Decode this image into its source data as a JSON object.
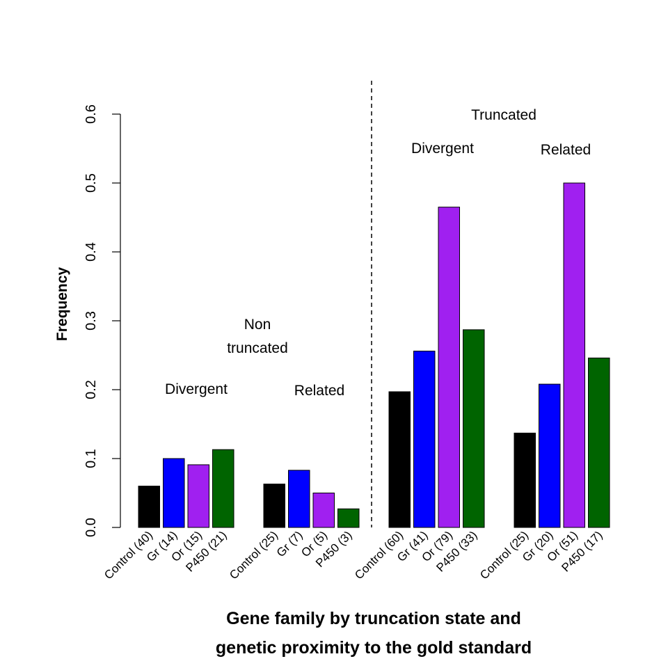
{
  "chart_data": {
    "type": "bar",
    "title": "",
    "xlabel_lines": [
      "Gene family by truncation state and",
      "genetic proximity to the gold standard"
    ],
    "ylabel": "Frequency",
    "ylim": [
      0,
      0.6
    ],
    "yticks": [
      "0.0",
      "0.1",
      "0.2",
      "0.3",
      "0.4",
      "0.5",
      "0.6"
    ],
    "grid": false,
    "legend": "none",
    "colors": {
      "Control": "#000000",
      "Gr": "#0000ff",
      "Or": "#a020f0",
      "P450": "#006400"
    },
    "groups": [
      {
        "truncation": "Non truncated",
        "proximity": "Divergent",
        "bars": [
          {
            "family": "Control",
            "label": "Control (40)",
            "value": 0.06
          },
          {
            "family": "Gr",
            "label": "Gr (14)",
            "value": 0.1
          },
          {
            "family": "Or",
            "label": "Or (15)",
            "value": 0.091
          },
          {
            "family": "P450",
            "label": "P450 (21)",
            "value": 0.113
          }
        ]
      },
      {
        "truncation": "Non truncated",
        "proximity": "Related",
        "bars": [
          {
            "family": "Control",
            "label": "Control (25)",
            "value": 0.063
          },
          {
            "family": "Gr",
            "label": "Gr (7)",
            "value": 0.083
          },
          {
            "family": "Or",
            "label": "Or (5)",
            "value": 0.05
          },
          {
            "family": "P450",
            "label": "P450 (3)",
            "value": 0.027
          }
        ]
      },
      {
        "truncation": "Truncated",
        "proximity": "Divergent",
        "bars": [
          {
            "family": "Control",
            "label": "Control (60)",
            "value": 0.197
          },
          {
            "family": "Gr",
            "label": "Gr (41)",
            "value": 0.256
          },
          {
            "family": "Or",
            "label": "Or (79)",
            "value": 0.465
          },
          {
            "family": "P450",
            "label": "P450 (33)",
            "value": 0.287
          }
        ]
      },
      {
        "truncation": "Truncated",
        "proximity": "Related",
        "bars": [
          {
            "family": "Control",
            "label": "Control (25)",
            "value": 0.137
          },
          {
            "family": "Gr",
            "label": "Gr (20)",
            "value": 0.208
          },
          {
            "family": "Or",
            "label": "Or (51)",
            "value": 0.5
          },
          {
            "family": "P450",
            "label": "P450 (17)",
            "value": 0.246
          }
        ]
      }
    ],
    "annotations": {
      "non_truncated_lines": [
        "Non",
        "truncated"
      ],
      "truncated": "Truncated",
      "group_labels": [
        "Divergent",
        "Related",
        "Divergent",
        "Related"
      ]
    },
    "divider": "dashed vertical line between non-truncated and truncated groups"
  }
}
